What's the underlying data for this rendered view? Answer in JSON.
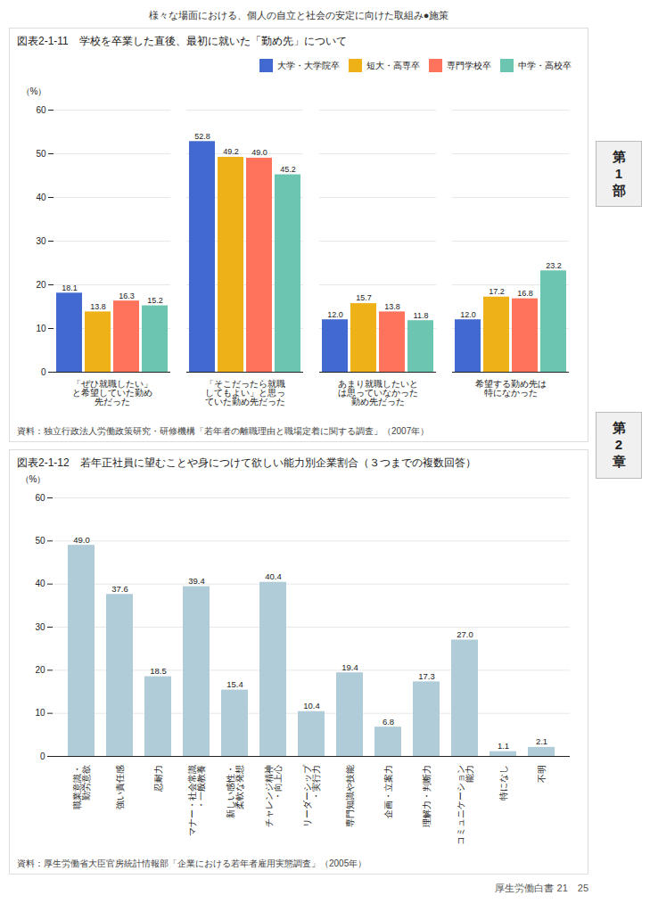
{
  "title": "様々な場面における、個人の自立と社会の安定に向けた取組み●施策",
  "annotations": [
    "第\n1\n部",
    "第\n2\n章",
    "厚生労働白書 21　25"
  ],
  "chart_data": [
    {
      "type": "bar",
      "title": "図表2-1-11　学校を卒業した直後、最初に就いた「勤め先」について",
      "ylabel": "（%）",
      "categories": [
        "「ぜひ就職したい」\nと希望していた勤め\n先だった",
        "「そこだったら就職\nしてもよい」と思っ\nていた勤め先だった",
        "あまり就職したいと\nは思っていなかった\n勤め先だった",
        "希望する勤め先は\n特になかった"
      ],
      "series": [
        {
          "name": "大学・大学院卒",
          "values": [
            18.1,
            52.8,
            12.0,
            12.0
          ],
          "value_labels": [
            "18.1",
            "52.8",
            "12.0",
            "12.0"
          ]
        },
        {
          "name": "短大・高専卒",
          "values": [
            13.8,
            49.2,
            15.7,
            17.2
          ],
          "value_labels": [
            "13.8",
            "49.2",
            "15.7",
            "17.2"
          ]
        },
        {
          "name": "専門学校卒",
          "values": [
            16.3,
            49.0,
            13.8,
            16.8
          ],
          "value_labels": [
            "16.3",
            "49.0",
            "13.8",
            "16.8"
          ]
        },
        {
          "name": "中学・高校卒",
          "values": [
            15.2,
            45.2,
            11.8,
            23.2
          ],
          "value_labels": [
            "15.2",
            "45.2",
            "11.8",
            "23.2"
          ]
        }
      ],
      "ylim": [
        0,
        60
      ],
      "yticks": [
        0,
        10,
        20,
        30,
        40,
        50,
        60
      ],
      "grid": true,
      "legend": "upper right",
      "data_labels": true,
      "annotations": [
        "資料：独立行政法人労働政策研究・研修機構「若年者の離職理由と職場定着に関する調査」（2007年）"
      ]
    },
    {
      "type": "bar",
      "title": "図表2-1-12　若年正社員に望むことや身につけて欲しい能力別企業割合（３つまでの複数回答）",
      "ylabel": "（%）",
      "categories": [
        "職業意識・\n勤労意欲",
        "強い責任感",
        "忍耐力",
        "マナー・社会常識\n・一般教養",
        "新しい感性・\n柔軟な発想",
        "チャレンジ精神\n・向上心",
        "リーダーシップ\n・実行力",
        "専門知識や技能",
        "企画・立案力",
        "理解力・判断力",
        "コミュニケーション\n能力",
        "特になし",
        "不明"
      ],
      "values": [
        49.0,
        37.6,
        18.5,
        39.4,
        15.4,
        40.4,
        10.4,
        19.4,
        6.8,
        17.3,
        27.0,
        1.1,
        2.1
      ],
      "value_labels": [
        "49.0",
        "37.6",
        "18.5",
        "39.4",
        "15.4",
        "40.4",
        "10.4",
        "19.4",
        "6.8",
        "17.3",
        "27.0",
        "1.1",
        "2.1"
      ],
      "color": "#b0ccd8",
      "ylim": [
        0,
        60
      ],
      "yticks": [
        0,
        10,
        20,
        30,
        40,
        50,
        60
      ],
      "grid": true,
      "data_labels": true,
      "annotations": [
        "資料：厚生労働省大臣官房統計情報部「企業における若年者雇用実態調査」（2005年）"
      ]
    }
  ]
}
